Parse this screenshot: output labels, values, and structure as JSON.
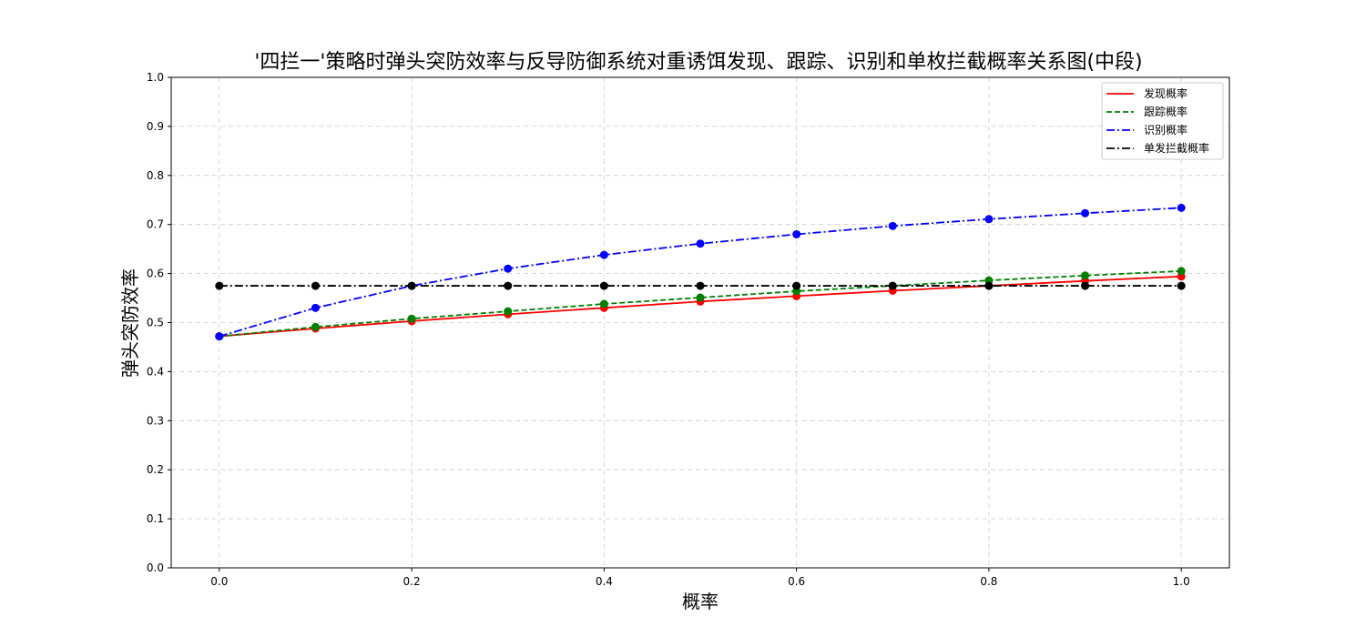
{
  "chart_data": {
    "type": "line",
    "title": "'四拦一'策略时弹头突防效率与反导防御系统对重诱饵发现、跟踪、识别和单枚拦截概率关系图(中段)",
    "xlabel": "概率",
    "ylabel": "弹头突防效率",
    "xlim": [
      -0.05,
      1.05
    ],
    "ylim": [
      0.0,
      1.0
    ],
    "x_ticks": [
      "0.0",
      "0.2",
      "0.4",
      "0.6",
      "0.8",
      "1.0"
    ],
    "y_ticks": [
      "0.0",
      "0.1",
      "0.2",
      "0.3",
      "0.4",
      "0.5",
      "0.6",
      "0.7",
      "0.8",
      "0.9",
      "1.0"
    ],
    "grid": true,
    "legend_position": "top-right",
    "x": [
      0.0,
      0.1,
      0.2,
      0.3,
      0.4,
      0.5,
      0.6,
      0.7,
      0.8,
      0.9,
      1.0
    ],
    "series": [
      {
        "name": "发现概率",
        "color": "#ff0000",
        "dash": "solid",
        "values": [
          0.472,
          0.488,
          0.503,
          0.517,
          0.53,
          0.543,
          0.554,
          0.565,
          0.575,
          0.585,
          0.594
        ]
      },
      {
        "name": "跟踪概率",
        "color": "#008000",
        "dash": "dashed",
        "values": [
          0.472,
          0.491,
          0.508,
          0.523,
          0.538,
          0.551,
          0.564,
          0.575,
          0.586,
          0.596,
          0.605
        ]
      },
      {
        "name": "识别概率",
        "color": "#0000ff",
        "dash": "dashdot",
        "values": [
          0.472,
          0.53,
          0.575,
          0.61,
          0.638,
          0.661,
          0.68,
          0.697,
          0.711,
          0.723,
          0.734
        ]
      },
      {
        "name": "单发拦截概率",
        "color": "#000000",
        "dash": "dashdot",
        "values": [
          0.575,
          0.575,
          0.575,
          0.575,
          0.575,
          0.575,
          0.575,
          0.575,
          0.575,
          0.575,
          0.575
        ]
      }
    ]
  }
}
